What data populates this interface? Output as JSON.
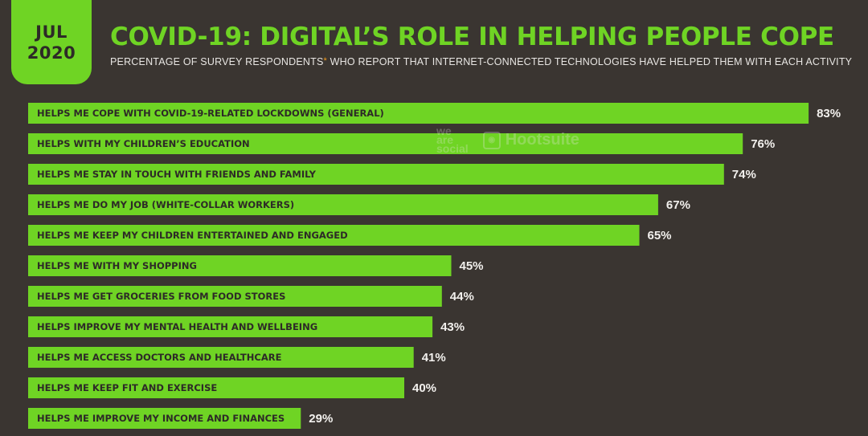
{
  "header": {
    "date_month": "JUL",
    "date_year": "2020",
    "title": "COVID-19: DIGITAL’S ROLE IN HELPING PEOPLE COPE",
    "subtitle_pre": "PERCENTAGE OF SURVEY RESPONDENTS",
    "subtitle_ast": "*",
    "subtitle_post": " WHO REPORT THAT INTERNET-CONNECTED TECHNOLOGIES HAVE HELPED THEM WITH EACH ACTIVITY"
  },
  "watermark": {
    "social_l1": "we",
    "social_l2": "are",
    "social_l3": "social",
    "hootsuite": "Hootsuite"
  },
  "colors": {
    "background": "#3a3531",
    "accent_green": "#6fd424",
    "bar_text": "#2d2a27",
    "value_text": "#f2f0ed"
  },
  "chart_data": {
    "type": "bar",
    "orientation": "horizontal",
    "categories": [
      "HELPS ME COPE WITH COVID-19-RELATED LOCKDOWNS (GENERAL)",
      "HELPS WITH MY CHILDREN’S EDUCATION",
      "HELPS ME STAY IN TOUCH WITH FRIENDS AND FAMILY",
      "HELPS ME DO MY JOB (WHITE-COLLAR WORKERS)",
      "HELPS ME KEEP MY CHILDREN ENTERTAINED AND ENGAGED",
      "HELPS ME WITH MY SHOPPING",
      "HELPS ME GET GROCERIES FROM FOOD STORES",
      "HELPS IMPROVE MY MENTAL HEALTH AND WELLBEING",
      "HELPS ME ACCESS DOCTORS AND HEALTHCARE",
      "HELPS ME KEEP FIT AND EXERCISE",
      "HELPS ME IMPROVE MY INCOME AND FINANCES"
    ],
    "values": [
      83,
      76,
      74,
      67,
      65,
      45,
      44,
      43,
      41,
      40,
      29
    ],
    "value_labels": [
      "83%",
      "76%",
      "74%",
      "67%",
      "65%",
      "45%",
      "44%",
      "43%",
      "41%",
      "40%",
      "29%"
    ],
    "unit": "%",
    "xlim": [
      0,
      100
    ],
    "grid": false,
    "legend": "none"
  }
}
